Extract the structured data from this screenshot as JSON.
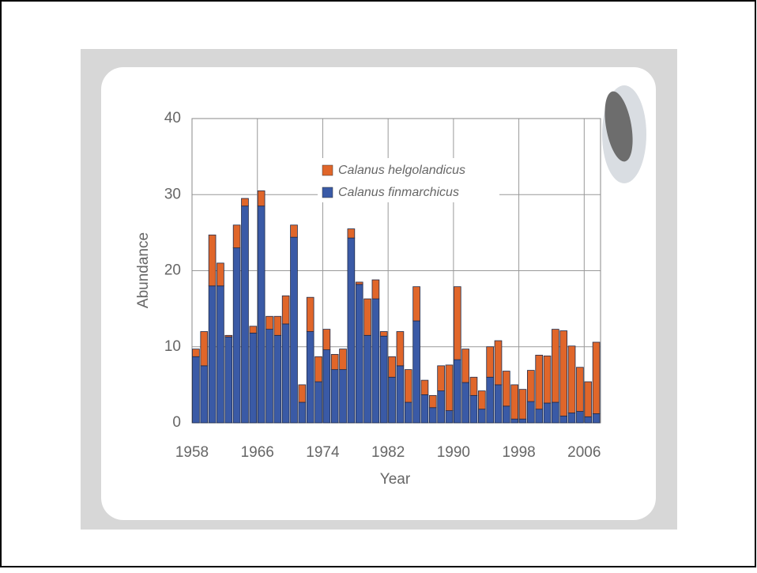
{
  "chart_data": {
    "type": "stacked-bar",
    "x_label": "Year",
    "y_label": "Abundance",
    "x": [
      1958,
      1959,
      1960,
      1961,
      1962,
      1963,
      1964,
      1965,
      1966,
      1967,
      1968,
      1969,
      1970,
      1971,
      1972,
      1973,
      1974,
      1975,
      1976,
      1977,
      1978,
      1979,
      1980,
      1981,
      1982,
      1983,
      1984,
      1985,
      1986,
      1987,
      1988,
      1989,
      1990,
      1991,
      1992,
      1993,
      1994,
      1995,
      1996,
      1997,
      1998,
      1999,
      2000,
      2001,
      2002,
      2003,
      2004,
      2005,
      2006,
      2007
    ],
    "series": [
      {
        "name": "Calanus finmarchicus",
        "color": "#3a5aa6",
        "values": [
          8.7,
          7.5,
          18,
          18,
          11.3,
          23,
          28.5,
          11.8,
          28.5,
          12.3,
          11.5,
          13,
          24.4,
          2.7,
          12,
          5.4,
          9.6,
          7,
          7,
          24.3,
          18.2,
          11.5,
          16.3,
          11.4,
          6,
          7.5,
          2.7,
          13.4,
          3.7,
          2,
          4.2,
          1.6,
          8.3,
          5.3,
          3.6,
          1.8,
          6,
          5,
          2.2,
          0.5,
          0.5,
          2.8,
          1.8,
          2.6,
          2.7,
          0.9,
          1.3,
          1.5,
          0.8,
          1.2
        ]
      },
      {
        "name": "Calanus helgolandicus",
        "color": "#e0662a",
        "values": [
          1,
          4.5,
          6.7,
          3,
          0.2,
          3,
          1,
          0.9,
          2,
          1.7,
          2.5,
          3.7,
          1.6,
          2.3,
          4.5,
          3.3,
          2.7,
          2,
          2.7,
          1.2,
          0.3,
          4.8,
          2.5,
          0.6,
          2.7,
          4.5,
          4.3,
          4.5,
          1.9,
          1.6,
          3.3,
          6,
          9.6,
          4.4,
          2.4,
          2.4,
          4,
          5.8,
          4.6,
          4.5,
          3.9,
          4.1,
          7.1,
          6.2,
          9.6,
          11.2,
          8.8,
          5.8,
          4.6,
          9.4
        ]
      }
    ],
    "xlim": [
      1958,
      2008
    ],
    "xticks": [
      1958,
      1966,
      1974,
      1982,
      1990,
      1998,
      2006
    ],
    "ylim": [
      0,
      40
    ],
    "yticks": [
      0,
      10,
      20,
      30,
      40
    ],
    "grid": true
  }
}
